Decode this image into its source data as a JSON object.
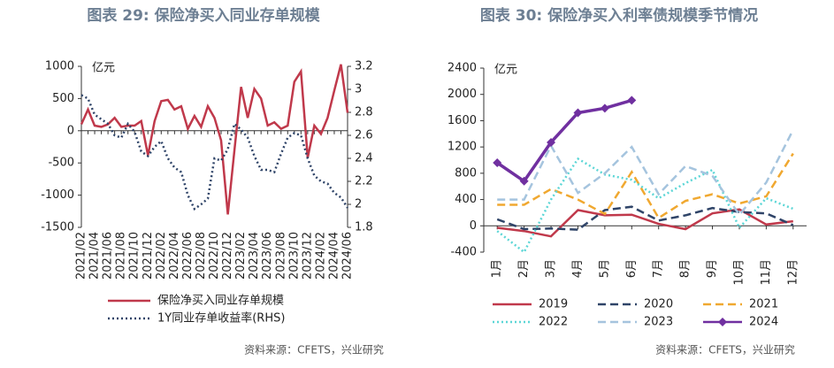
{
  "chart_data": [
    {
      "type": "line",
      "title": "图表 29: 保险净买入同业存单规模",
      "ylabel": "亿元",
      "source": "资料来源：CFETS，兴业研究",
      "categories": [
        "2021/02",
        null,
        "2021/04",
        null,
        "2021/06",
        null,
        "2021/08",
        null,
        "2021/10",
        null,
        "2021/12",
        null,
        "2022/02",
        null,
        "2022/04",
        null,
        "2022/06",
        null,
        "2022/08",
        null,
        "2022/10",
        null,
        "2022/12",
        null,
        "2023/02",
        null,
        "2023/04",
        null,
        "2023/06",
        null,
        "2023/08",
        null,
        "2023/10",
        null,
        "2023/12",
        null,
        "2024/02",
        null,
        "2024/04",
        null,
        "2024/06"
      ],
      "ylim": [
        -1500,
        1000
      ],
      "yticks": [
        -1500,
        -1000,
        -500,
        0,
        500,
        1000
      ],
      "y2lim": [
        1.8,
        3.2
      ],
      "y2ticks": [
        1.8,
        2,
        2.2,
        2.4,
        2.6,
        2.8,
        3,
        3.2
      ],
      "legend": "bottom",
      "series": [
        {
          "name": "保险净买入同业存单规模",
          "color": "#c0394b",
          "dash": "solid",
          "values": [
            100,
            330,
            80,
            60,
            100,
            200,
            60,
            80,
            80,
            150,
            -380,
            150,
            460,
            480,
            330,
            380,
            30,
            230,
            60,
            380,
            200,
            -150,
            -1300,
            -300,
            680,
            200,
            650,
            500,
            80,
            130,
            30,
            80,
            760,
            920,
            -420,
            80,
            -50,
            200,
            620,
            1030,
            280
          ]
        },
        {
          "name": "1Y同业存单收益率(RHS)",
          "color": "#2f4468",
          "dash": "dotted",
          "axis": "y2",
          "values": [
            2.95,
            2.92,
            2.78,
            2.74,
            2.7,
            2.6,
            2.58,
            2.7,
            2.63,
            2.46,
            2.42,
            2.5,
            2.55,
            2.4,
            2.32,
            2.28,
            2.08,
            1.96,
            2.0,
            2.05,
            2.4,
            2.38,
            2.48,
            2.7,
            2.65,
            2.58,
            2.42,
            2.3,
            2.3,
            2.28,
            2.44,
            2.58,
            2.62,
            2.6,
            2.4,
            2.25,
            2.2,
            2.18,
            2.1,
            2.06,
            1.97
          ]
        }
      ]
    },
    {
      "type": "line",
      "title": "图表 30: 保险净买入利率债规模季节情况",
      "ylabel": "亿元",
      "source": "资料来源：CFETS，兴业研究",
      "categories": [
        "1月",
        "2月",
        "3月",
        "4月",
        "5月",
        "6月",
        "7月",
        "8月",
        "9月",
        "10月",
        "11月",
        "12月"
      ],
      "ylim": [
        -400,
        2400
      ],
      "yticks": [
        -400,
        0,
        400,
        800,
        1200,
        1600,
        2000,
        2400
      ],
      "legend": "bottom",
      "series": [
        {
          "name": "2019",
          "color": "#c0394b",
          "dash": "solid",
          "values": [
            -30,
            -80,
            -160,
            240,
            160,
            170,
            30,
            -50,
            190,
            250,
            20,
            70
          ]
        },
        {
          "name": "2020",
          "color": "#2f4468",
          "dash": "dashed",
          "values": [
            100,
            -50,
            -40,
            -60,
            240,
            290,
            80,
            160,
            270,
            210,
            190,
            10
          ]
        },
        {
          "name": "2021",
          "color": "#f0a830",
          "dash": "dashed",
          "values": [
            320,
            320,
            560,
            400,
            180,
            820,
            120,
            380,
            480,
            340,
            450,
            1100
          ]
        },
        {
          "name": "2022",
          "color": "#5cd6d6",
          "dash": "dotted",
          "values": [
            -80,
            -400,
            400,
            1020,
            780,
            700,
            420,
            650,
            850,
            -30,
            420,
            260
          ]
        },
        {
          "name": "2023",
          "color": "#a5c4de",
          "dash": "dashed",
          "values": [
            400,
            400,
            1220,
            500,
            800,
            1200,
            480,
            910,
            760,
            170,
            660,
            1460
          ]
        },
        {
          "name": "2024",
          "color": "#7030a0",
          "dash": "solid",
          "marker": "diamond",
          "values": [
            960,
            680,
            1270,
            1720,
            1790,
            1910,
            null,
            null,
            null,
            null,
            null,
            null
          ]
        }
      ]
    }
  ]
}
